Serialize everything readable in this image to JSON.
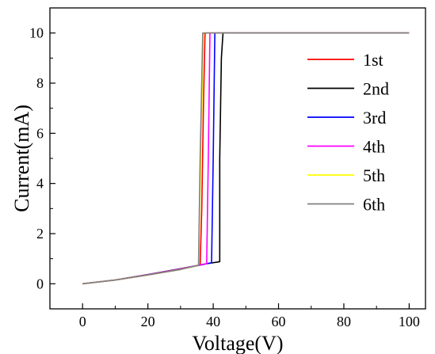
{
  "chart_data": {
    "type": "line",
    "xlabel": "Voltage(V)",
    "ylabel": "Current(mA)",
    "xlim": [
      -10,
      105
    ],
    "ylim": [
      -1,
      11
    ],
    "xticks": [
      0,
      20,
      40,
      60,
      80,
      100
    ],
    "yticks": [
      0,
      2,
      4,
      6,
      8,
      10
    ],
    "legend_position": "right",
    "series": [
      {
        "name": "1st",
        "color": "#ff0000",
        "points": [
          [
            0,
            0
          ],
          [
            10,
            0.15
          ],
          [
            20,
            0.35
          ],
          [
            30,
            0.58
          ],
          [
            35,
            0.72
          ],
          [
            36,
            0.75
          ],
          [
            36.5,
            3
          ],
          [
            37,
            7
          ],
          [
            37.5,
            10
          ],
          [
            100,
            10
          ]
        ]
      },
      {
        "name": "2nd",
        "color": "#000000",
        "points": [
          [
            0,
            0
          ],
          [
            10,
            0.15
          ],
          [
            20,
            0.37
          ],
          [
            30,
            0.6
          ],
          [
            38,
            0.8
          ],
          [
            42,
            0.88
          ],
          [
            42,
            5
          ],
          [
            42.5,
            9
          ],
          [
            43,
            10
          ],
          [
            100,
            10
          ]
        ]
      },
      {
        "name": "3rd",
        "color": "#0000ff",
        "points": [
          [
            0,
            0
          ],
          [
            10,
            0.15
          ],
          [
            20,
            0.36
          ],
          [
            30,
            0.59
          ],
          [
            38,
            0.8
          ],
          [
            39.5,
            0.84
          ],
          [
            40,
            5
          ],
          [
            40.5,
            10
          ],
          [
            100,
            10
          ]
        ]
      },
      {
        "name": "4th",
        "color": "#ff00ff",
        "points": [
          [
            0,
            0
          ],
          [
            10,
            0.15
          ],
          [
            20,
            0.36
          ],
          [
            30,
            0.59
          ],
          [
            37,
            0.78
          ],
          [
            38,
            0.8
          ],
          [
            38.5,
            5
          ],
          [
            39,
            10
          ],
          [
            100,
            10
          ]
        ]
      },
      {
        "name": "5th",
        "color": "#ffff00",
        "points": [
          [
            0,
            0
          ],
          [
            10,
            0.15
          ],
          [
            20,
            0.35
          ],
          [
            30,
            0.57
          ],
          [
            35,
            0.72
          ],
          [
            35.5,
            0.74
          ],
          [
            36.2,
            5
          ],
          [
            37,
            10
          ],
          [
            100,
            10
          ]
        ]
      },
      {
        "name": "6th",
        "color": "#808080",
        "points": [
          [
            0,
            0
          ],
          [
            10,
            0.15
          ],
          [
            20,
            0.35
          ],
          [
            30,
            0.57
          ],
          [
            35,
            0.72
          ],
          [
            35.5,
            0.73
          ],
          [
            36,
            5
          ],
          [
            36.8,
            10
          ],
          [
            100,
            10
          ]
        ]
      }
    ]
  }
}
